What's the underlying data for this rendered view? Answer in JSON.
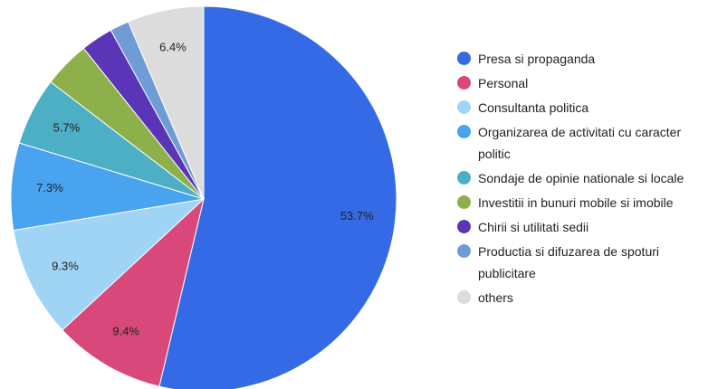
{
  "chart_data": {
    "type": "pie",
    "categories": [
      "Presa si propaganda",
      "Personal",
      "Consultanta politica",
      "Organizarea de activitati cu caracter politic",
      "Sondaje de opinie nationale si locale",
      "Investitii in bunuri mobile si imobile",
      "Chirii si utilitati sedii",
      "Productia si difuzarea de spoturi publicitare",
      "others"
    ],
    "values": [
      53.7,
      9.4,
      9.3,
      7.3,
      5.7,
      3.9,
      2.7,
      1.6,
      6.4
    ],
    "value_labels": [
      "53.7%",
      "9.4%",
      "9.3%",
      "7.3%",
      "5.7%",
      null,
      null,
      null,
      "6.4%"
    ],
    "colors": [
      "#356ae6",
      "#d9487a",
      "#9fd4f5",
      "#4aa3ef",
      "#4cafc6",
      "#8db04a",
      "#5b35b8",
      "#6f9bd6",
      "#dcdcdc"
    ],
    "legend": "right"
  }
}
